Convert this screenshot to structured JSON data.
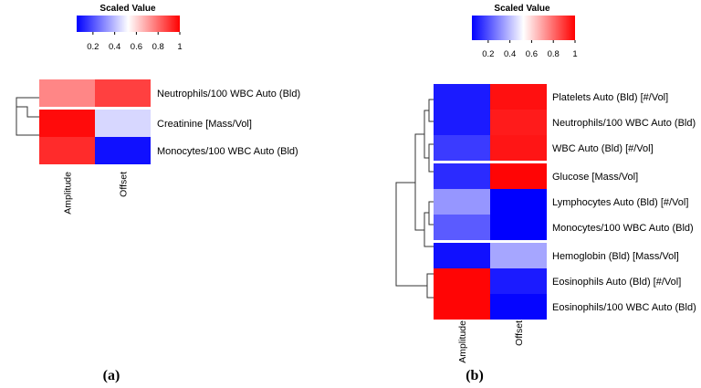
{
  "chart_data": [
    {
      "panel": "(a)",
      "type": "heatmap",
      "colorbar": {
        "title": "Scaled Value",
        "ticks": [
          "0.2",
          "0.4",
          "0.6",
          "0.8",
          "1"
        ],
        "tick_values": [
          0.2,
          0.4,
          0.6,
          0.8,
          1.0
        ],
        "range": [
          0.05,
          1.0
        ],
        "colors": {
          "low": "#0000ff",
          "mid": "#ffffff",
          "high": "#ff0000"
        }
      },
      "columns": [
        "Amplitude",
        "Offset"
      ],
      "rows": [
        "Neutrophils/100 WBC Auto (Bld)",
        "Creatinine [Mass/Vol]",
        "Monocytes/100 WBC Auto (Bld)"
      ],
      "values": [
        [
          0.75,
          0.88
        ],
        [
          0.98,
          0.45
        ],
        [
          0.92,
          0.08
        ]
      ],
      "row_splits_after": [
        1
      ]
    },
    {
      "panel": "(b)",
      "type": "heatmap",
      "colorbar": {
        "title": "Scaled Value",
        "ticks": [
          "0.2",
          "0.4",
          "0.6",
          "0.8",
          "1"
        ],
        "tick_values": [
          0.2,
          0.4,
          0.6,
          0.8,
          1.0
        ],
        "range": [
          0.05,
          1.0
        ],
        "colors": {
          "low": "#0000ff",
          "mid": "#ffffff",
          "high": "#ff0000"
        }
      },
      "columns": [
        "Amplitude",
        "Offset"
      ],
      "rows": [
        "Platelets Auto (Bld) [#/Vol]",
        "Neutrophils/100 WBC Auto (Bld)",
        "WBC Auto (Bld) [#/Vol]",
        "Glucose [Mass/Vol]",
        "Lymphocytes Auto (Bld) [#/Vol]",
        "Monocytes/100 WBC Auto (Bld)",
        "Hemoglobin (Bld) [Mass/Vol]",
        "Eosinophils Auto (Bld) [#/Vol]",
        "Eosinophils/100 WBC Auto (Bld)"
      ],
      "values": [
        [
          0.1,
          0.97
        ],
        [
          0.1,
          0.95
        ],
        [
          0.16,
          0.96
        ],
        [
          0.13,
          0.99
        ],
        [
          0.33,
          0.05
        ],
        [
          0.22,
          0.05
        ],
        [
          0.08,
          0.36
        ],
        [
          0.99,
          0.1
        ],
        [
          0.99,
          0.06
        ]
      ],
      "row_splits_after": [
        3,
        6
      ]
    }
  ]
}
